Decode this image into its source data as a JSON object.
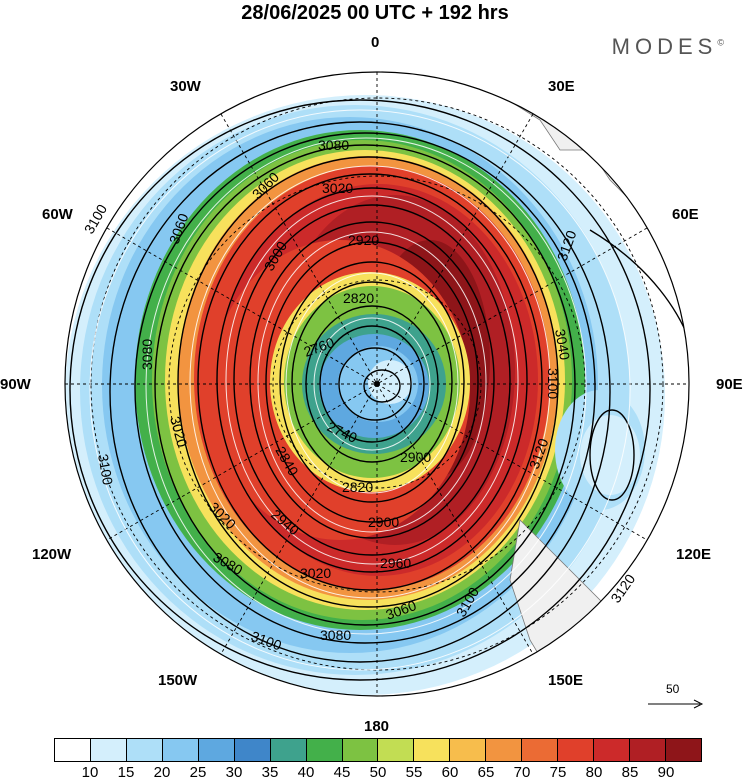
{
  "title": "28/06/2025  00 UTC  + 192 hrs",
  "brand": "MODES",
  "brand_mark": "©",
  "longitude_labels": {
    "n": "0",
    "e30": "30E",
    "e60": "60E",
    "e90": "90E",
    "e120": "120E",
    "e150": "150E",
    "s": "180",
    "w150": "150W",
    "w120": "120W",
    "w90": "90W",
    "w60": "60W",
    "w30": "30W"
  },
  "contour_labels": [
    "3100",
    "3080",
    "3060",
    "3020",
    "3000",
    "2920",
    "2820",
    "2760",
    "2740",
    "2840",
    "2900",
    "2960",
    "3120",
    "3040",
    "2940",
    "3080",
    "3100",
    "3120"
  ],
  "wind_reference": {
    "label": "50"
  },
  "colorbar": {
    "colors": [
      "#ffffff",
      "#d4effc",
      "#aedff8",
      "#86c8f1",
      "#5ea8e0",
      "#3f86c9",
      "#3ea28d",
      "#43b04a",
      "#7dc242",
      "#c2dd53",
      "#f7e15c",
      "#f7bd4c",
      "#f29440",
      "#eb6b34",
      "#e0402b",
      "#cc2a2a",
      "#b01f24",
      "#8e1519"
    ],
    "labels": [
      "10",
      "15",
      "20",
      "25",
      "30",
      "35",
      "40",
      "45",
      "50",
      "55",
      "60",
      "65",
      "70",
      "75",
      "80",
      "85",
      "90"
    ]
  }
}
